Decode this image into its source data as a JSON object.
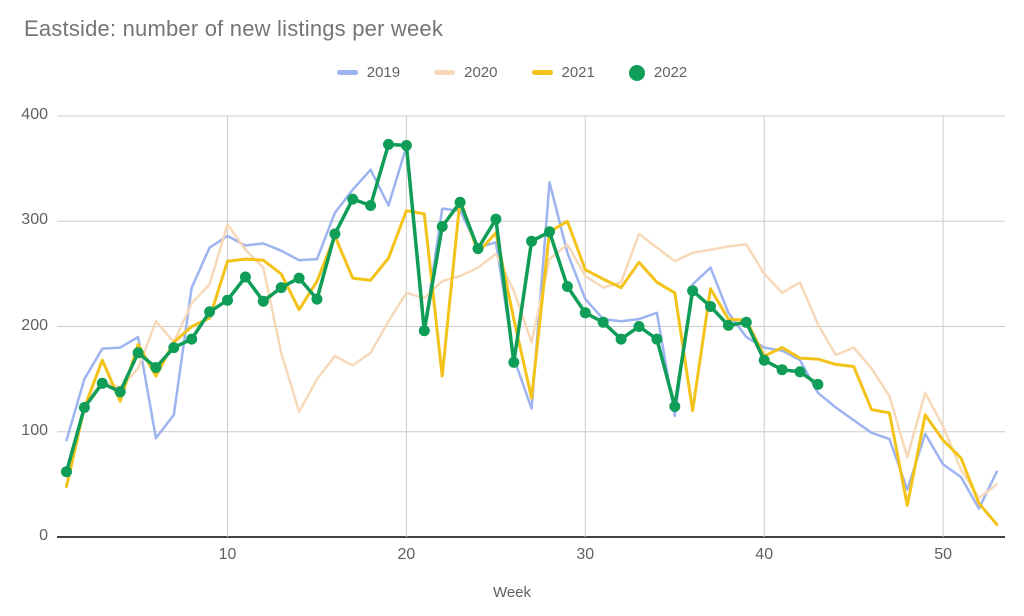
{
  "page": {
    "title": "Eastside: number of new listings per week",
    "x_axis_title": "Week"
  },
  "chart_data": {
    "type": "line",
    "title": "Eastside: number of new listings per week",
    "xlabel": "Week",
    "ylabel": "",
    "x_start_week": 1,
    "x_end_week": 53,
    "xlim": [
      1,
      53
    ],
    "ylim": [
      0,
      400
    ],
    "x_ticks": [
      10,
      20,
      30,
      40,
      50
    ],
    "y_ticks": [
      0,
      100,
      200,
      300,
      400
    ],
    "grid": true,
    "legend_position": "top-center",
    "series": [
      {
        "name": "2019",
        "color": "#9db4f0",
        "style": "line",
        "marker": false,
        "values": [
          92,
          150,
          179,
          180,
          190,
          94,
          116,
          237,
          275,
          286,
          277,
          279,
          272,
          263,
          264,
          308,
          330,
          349,
          315,
          371,
          197,
          312,
          310,
          275,
          280,
          170,
          122,
          337,
          270,
          226,
          207,
          205,
          207,
          213,
          115,
          240,
          256,
          213,
          190,
          180,
          177,
          168,
          137,
          123,
          111,
          99,
          93,
          45,
          98,
          69,
          57,
          27,
          62
        ]
      },
      {
        "name": "2020",
        "color": "#f7d9ba",
        "style": "line",
        "marker": false,
        "values": [
          null,
          125,
          148,
          142,
          160,
          205,
          185,
          222,
          240,
          297,
          273,
          256,
          175,
          119,
          150,
          172,
          163,
          175,
          205,
          232,
          227,
          243,
          248,
          256,
          269,
          234,
          185,
          264,
          278,
          248,
          237,
          242,
          288,
          275,
          262,
          270,
          273,
          276,
          278,
          250,
          232,
          242,
          202,
          173,
          180,
          160,
          134,
          76,
          137,
          105,
          64,
          37,
          50
        ]
      },
      {
        "name": "2021",
        "color": "#f3c319",
        "style": "line",
        "marker": false,
        "values": [
          48,
          123,
          168,
          129,
          183,
          153,
          185,
          200,
          208,
          262,
          264,
          263,
          250,
          216,
          243,
          286,
          246,
          244,
          265,
          310,
          307,
          153,
          321,
          270,
          289,
          207,
          132,
          290,
          300,
          254,
          245,
          237,
          261,
          242,
          232,
          120,
          236,
          207,
          206,
          172,
          180,
          170,
          169,
          164,
          162,
          121,
          118,
          30,
          116,
          92,
          75,
          32,
          12
        ]
      },
      {
        "name": "2022",
        "color": "#0f9d58",
        "style": "line",
        "marker": true,
        "values": [
          62,
          123,
          146,
          138,
          175,
          161,
          180,
          188,
          214,
          225,
          247,
          224,
          237,
          246,
          226,
          288,
          321,
          315,
          373,
          372,
          196,
          295,
          318,
          274,
          302,
          166,
          281,
          290,
          238,
          213,
          204,
          188,
          200,
          188,
          124,
          234,
          219,
          201,
          204,
          168,
          159,
          157,
          145
        ]
      }
    ]
  },
  "colors": {
    "title_text": "#757575",
    "axis_text": "#616161",
    "legend_text": "#5f6368",
    "gridline": "#cccccc",
    "axis_line": "#424242",
    "background": "#ffffff"
  }
}
